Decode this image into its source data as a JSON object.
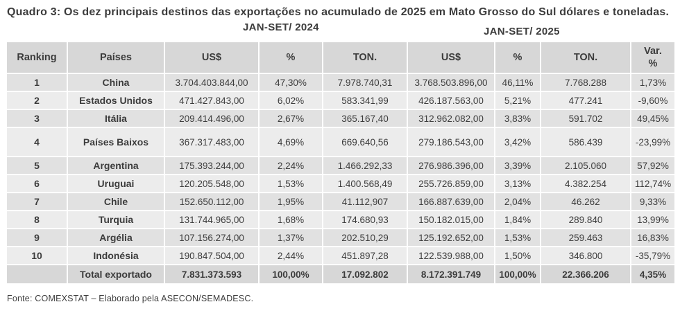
{
  "chart_data": {
    "type": "table",
    "title": "Quadro 3: Os dez principais destinos das exportações no acumulado de 2025 em Mato Grosso do Sul dólares e toneladas.",
    "period_headers": [
      "JAN-SET/ 2024",
      "JAN-SET/ 2025"
    ],
    "columns": [
      "Ranking",
      "Países",
      "US$",
      "%",
      "TON.",
      "US$",
      "%",
      "TON.",
      "Var. %"
    ],
    "rows": [
      [
        "1",
        "China",
        "3.704.403.844,00",
        "47,30%",
        "7.978.740,31",
        "3.768.503.896,00",
        "46,11%",
        "7.768.288",
        "1,73%"
      ],
      [
        "2",
        "Estados Unidos",
        "471.427.843,00",
        "6,02%",
        "583.341,99",
        "426.187.563,00",
        "5,21%",
        "477.241",
        "-9,60%"
      ],
      [
        "3",
        "Itália",
        "209.414.496,00",
        "2,67%",
        "365.167,40",
        "312.962.082,00",
        "3,83%",
        "591.702",
        "49,45%"
      ],
      [
        "4",
        "Países Baixos",
        "367.317.483,00",
        "4,69%",
        "669.640,56",
        "279.186.543,00",
        "3,42%",
        "586.439",
        "-23,99%"
      ],
      [
        "5",
        "Argentina",
        "175.393.244,00",
        "2,24%",
        "1.466.292,33",
        "276.986.396,00",
        "3,39%",
        "2.105.060",
        "57,92%"
      ],
      [
        "6",
        "Uruguai",
        "120.205.548,00",
        "1,53%",
        "1.400.568,49",
        "255.726.859,00",
        "3,13%",
        "4.382.254",
        "112,74%"
      ],
      [
        "7",
        "Chile",
        "152.650.112,00",
        "1,95%",
        "41.112,907",
        "166.887.639,00",
        "2,04%",
        "46.262",
        "9,33%"
      ],
      [
        "8",
        "Turquia",
        "131.744.965,00",
        "1,68%",
        "174.680,93",
        "150.182.015,00",
        "1,84%",
        "289.840",
        "13,99%"
      ],
      [
        "9",
        "Argélia",
        "107.156.274,00",
        "1,37%",
        "202.510,29",
        "125.192.652,00",
        "1,53%",
        "259.463",
        "16,83%"
      ],
      [
        "10",
        "Indonésia",
        "190.847.504,00",
        "2,44%",
        "451.897,28",
        "122.539.988,00",
        "1,50%",
        "346.800",
        "-35,79%"
      ]
    ],
    "total_row": [
      "",
      "Total exportado",
      "7.831.373.593",
      "100,00%",
      "17.092.802",
      "8.172.391.749",
      "100,00%",
      "22.366.206",
      "4,35%"
    ],
    "source": "Fonte: COMEXSTAT – Elaborado pela ASECON/SEMADESC."
  },
  "colors": {
    "background": "#ffffff",
    "text": "#3c3c3c",
    "header_bg": "#d7d7d7",
    "row_dark_bg": "#e1e1e1",
    "row_light_bg": "#ececec",
    "total_bg": "#d7d7d7"
  }
}
